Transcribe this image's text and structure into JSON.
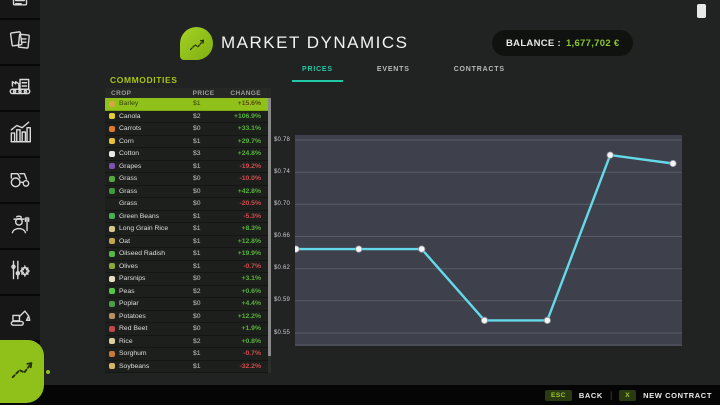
{
  "app": {
    "title": "MARKET DYNAMICS",
    "balance_label": "BALANCE :",
    "balance_value": "1,677,702 €"
  },
  "tabs": [
    {
      "label": "PRICES",
      "active": true
    },
    {
      "label": "EVENTS",
      "active": false
    },
    {
      "label": "CONTRACTS",
      "active": false
    }
  ],
  "sidebar": {
    "items": [
      {
        "icon": "finances-icon"
      },
      {
        "icon": "contracts-icon"
      },
      {
        "icon": "production-icon"
      },
      {
        "icon": "statistics-icon"
      },
      {
        "icon": "vehicles-icon"
      },
      {
        "icon": "farmer-icon"
      },
      {
        "icon": "settings-icon"
      },
      {
        "icon": "construction-icon"
      }
    ],
    "active_item": {
      "icon": "market-dynamics-icon"
    }
  },
  "commodities": {
    "section_label": "COMMODITIES",
    "columns": [
      "CROP",
      "PRICE",
      "CHANGE"
    ],
    "rows": [
      {
        "icon": "barley-icon",
        "icon_color": "#d2a93e",
        "name": "Barley",
        "price": "$1",
        "change": "+15.6%",
        "direction": "up",
        "selected": true
      },
      {
        "icon": "canola-icon",
        "icon_color": "#e3cf38",
        "name": "Canola",
        "price": "$2",
        "change": "+106.9%",
        "direction": "up"
      },
      {
        "icon": "carrots-icon",
        "icon_color": "#de7a2b",
        "name": "Carrots",
        "price": "$0",
        "change": "+33.1%",
        "direction": "up"
      },
      {
        "icon": "corn-icon",
        "icon_color": "#e6c23a",
        "name": "Corn",
        "price": "$1",
        "change": "+29.7%",
        "direction": "up"
      },
      {
        "icon": "cotton-icon",
        "icon_color": "#e8e8e8",
        "name": "Cotton",
        "price": "$3",
        "change": "+24.8%",
        "direction": "up"
      },
      {
        "icon": "grapes-icon",
        "icon_color": "#7c52ae",
        "name": "Grapes",
        "price": "$1",
        "change": "-19.2%",
        "direction": "down"
      },
      {
        "icon": "grass-icon",
        "icon_color": "#55a83b",
        "name": "Grass",
        "price": "$0",
        "change": "-10.0%",
        "direction": "down"
      },
      {
        "icon": "grass-icon",
        "icon_color": "#3f9a3f",
        "name": "Grass",
        "price": "$0",
        "change": "+42.8%",
        "direction": "up"
      },
      {
        "icon": "none",
        "icon_color": "transparent",
        "name": "Grass",
        "price": "$0",
        "change": "-20.5%",
        "direction": "down"
      },
      {
        "icon": "green-beans-icon",
        "icon_color": "#4dae50",
        "name": "Green Beans",
        "price": "$1",
        "change": "-5.3%",
        "direction": "down"
      },
      {
        "icon": "long-grain-rice-icon",
        "icon_color": "#d6c689",
        "name": "Long Grain Rice",
        "price": "$1",
        "change": "+8.3%",
        "direction": "up"
      },
      {
        "icon": "oat-icon",
        "icon_color": "#c3a64d",
        "name": "Oat",
        "price": "$1",
        "change": "+12.8%",
        "direction": "up"
      },
      {
        "icon": "oilseed-radish-icon",
        "icon_color": "#57b847",
        "name": "Oilseed Radish",
        "price": "$1",
        "change": "+19.9%",
        "direction": "up"
      },
      {
        "icon": "olives-icon",
        "icon_color": "#8aa83c",
        "name": "Olives",
        "price": "$1",
        "change": "-0.7%",
        "direction": "down"
      },
      {
        "icon": "parsnips-icon",
        "icon_color": "#e6dec0",
        "name": "Parsnips",
        "price": "$0",
        "change": "+3.1%",
        "direction": "up"
      },
      {
        "icon": "peas-icon",
        "icon_color": "#55c747",
        "name": "Peas",
        "price": "$2",
        "change": "+0.6%",
        "direction": "up"
      },
      {
        "icon": "poplar-icon",
        "icon_color": "#4a9e4a",
        "name": "Poplar",
        "price": "$0",
        "change": "+4.4%",
        "direction": "up"
      },
      {
        "icon": "potatoes-icon",
        "icon_color": "#b58f60",
        "name": "Potatoes",
        "price": "$0",
        "change": "+12.2%",
        "direction": "up"
      },
      {
        "icon": "red-beet-icon",
        "icon_color": "#c04848",
        "name": "Red Beet",
        "price": "$0",
        "change": "+1.9%",
        "direction": "up"
      },
      {
        "icon": "rice-icon",
        "icon_color": "#d8d0a0",
        "name": "Rice",
        "price": "$2",
        "change": "+0.8%",
        "direction": "up"
      },
      {
        "icon": "sorghum-icon",
        "icon_color": "#c47a38",
        "name": "Sorghum",
        "price": "$1",
        "change": "-0.7%",
        "direction": "down"
      },
      {
        "icon": "soybeans-icon",
        "icon_color": "#d5b466",
        "name": "Soybeans",
        "price": "$1",
        "change": "-32.2%",
        "direction": "down"
      }
    ]
  },
  "chart_data": {
    "type": "line",
    "title": "Barley price history",
    "series": [
      {
        "name": "Barley",
        "values": [
          0.65,
          0.65,
          0.65,
          0.565,
          0.565,
          0.762,
          0.752
        ]
      }
    ],
    "x_count": 7,
    "y_tick_labels": [
      "$0.78",
      "$0.74",
      "$0.70",
      "$0.66",
      "$0.62",
      "$0.59",
      "$0.55"
    ],
    "y_tick_values": [
      0.78,
      0.74,
      0.7,
      0.66,
      0.62,
      0.59,
      0.55
    ],
    "ylim": [
      0.55,
      0.78
    ],
    "grid": true,
    "legend": "none",
    "line_color": "#64d9e8",
    "marker_color": "#f5f5f5",
    "plot_bg": "#3e404b",
    "grid_color": "#595b68"
  },
  "bottom_bar": {
    "back_key": "ESC",
    "back_label": "BACK",
    "separator": "|",
    "contract_key": "X",
    "contract_label": "NEW CONTRACT"
  },
  "colors": {
    "accent_lime": "#8fc11a",
    "accent_teal": "#1fc9a7",
    "positive": "#57b23c",
    "negative": "#cf4e4e",
    "balance_green": "#8ac62c"
  }
}
